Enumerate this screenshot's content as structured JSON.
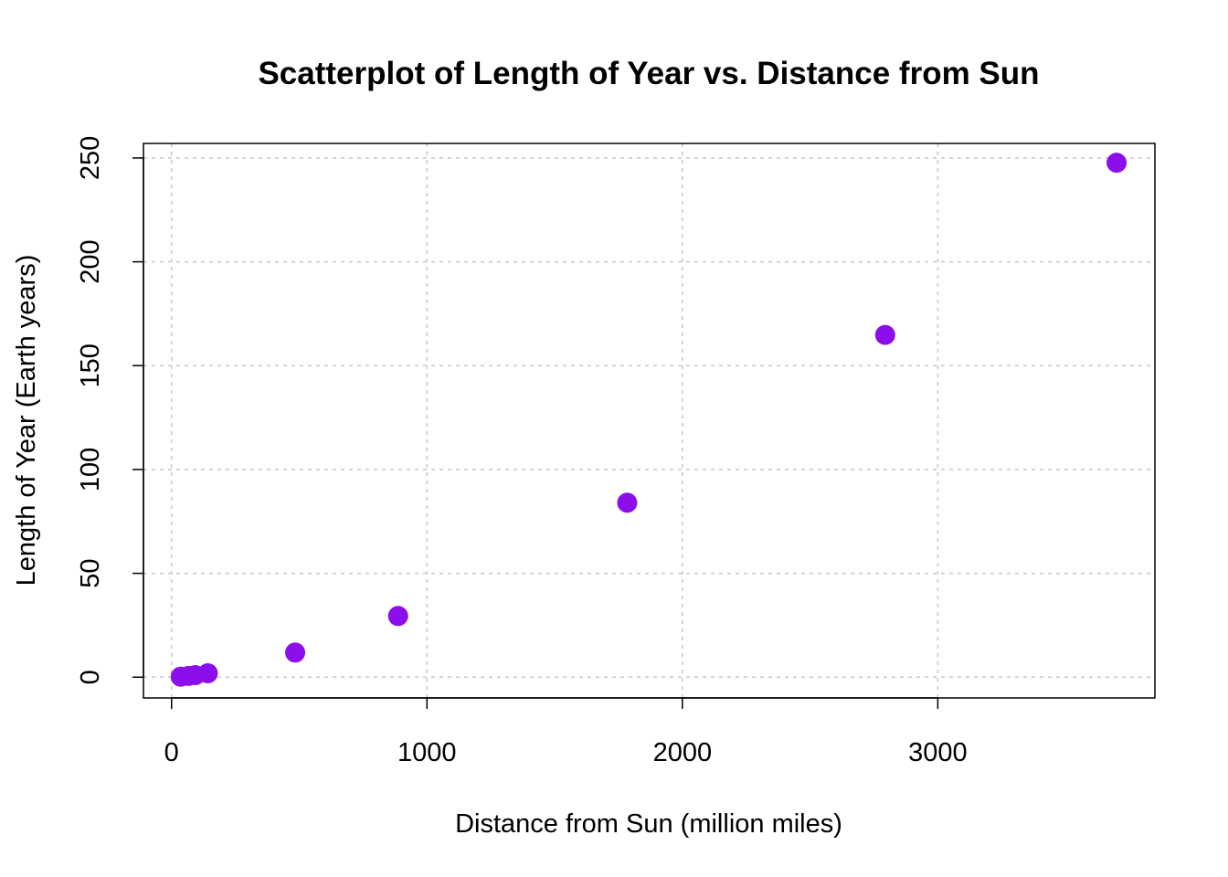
{
  "chart_data": {
    "type": "scatter",
    "title": "Scatterplot of Length of Year vs. Distance from Sun",
    "xlabel": "Distance from Sun (million miles)",
    "ylabel": "Length of Year (Earth years)",
    "xlim": [
      -110,
      3850
    ],
    "ylim": [
      -10,
      257
    ],
    "xticks": [
      0,
      1000,
      2000,
      3000
    ],
    "yticks": [
      0,
      50,
      100,
      150,
      200,
      250
    ],
    "grid": true,
    "point_color": "#8B0EEB",
    "series": [
      {
        "x": [
          36,
          67,
          93,
          142,
          484,
          887,
          1784,
          2794,
          3700
        ],
        "y": [
          0.24,
          0.62,
          1.0,
          1.88,
          11.86,
          29.46,
          84.01,
          164.8,
          247.7
        ]
      }
    ]
  }
}
